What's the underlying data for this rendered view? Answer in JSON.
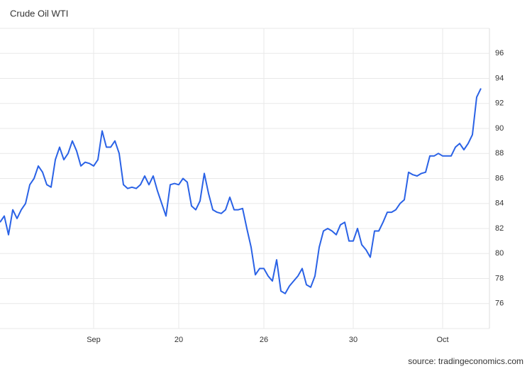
{
  "chart_data": {
    "type": "line",
    "title": "Crude Oil WTI",
    "source": "source: tradingeconomics.com",
    "categories": [
      null,
      null,
      null,
      null,
      null,
      null,
      null,
      null,
      null,
      null,
      null,
      null,
      null,
      null,
      null,
      null,
      null,
      null,
      null,
      null,
      null,
      null,
      "Sep",
      null,
      null,
      null,
      null,
      null,
      null,
      null,
      null,
      null,
      null,
      null,
      null,
      null,
      null,
      null,
      null,
      null,
      null,
      null,
      "20",
      null,
      null,
      null,
      null,
      null,
      null,
      null,
      null,
      null,
      null,
      null,
      null,
      null,
      null,
      null,
      null,
      null,
      null,
      null,
      "26",
      null,
      null,
      null,
      null,
      null,
      null,
      null,
      null,
      null,
      null,
      null,
      null,
      null,
      null,
      null,
      null,
      null,
      null,
      null,
      null,
      "30",
      null,
      null,
      null,
      null,
      null,
      null,
      null,
      null,
      null,
      null,
      null,
      null,
      null,
      null,
      null,
      null,
      null,
      null,
      null,
      null,
      "Oct",
      null,
      null,
      null,
      null,
      null,
      null,
      null,
      null,
      null
    ],
    "values": [
      82.5,
      83,
      81.5,
      83.5,
      82.8,
      83.5,
      84,
      85.5,
      86,
      87,
      86.5,
      85.5,
      85.3,
      87.5,
      88.5,
      87.5,
      88,
      89,
      88.2,
      87,
      87.3,
      87.2,
      87,
      87.5,
      89.8,
      88.5,
      88.5,
      89,
      88,
      85.5,
      85.2,
      85.3,
      85.2,
      85.5,
      86.2,
      85.5,
      86.2,
      85,
      84,
      83,
      85.5,
      85.6,
      85.5,
      86,
      85.7,
      83.8,
      83.5,
      84.2,
      86.4,
      84.8,
      83.5,
      83.3,
      83.2,
      83.5,
      84.5,
      83.5,
      83.5,
      83.6,
      82,
      80.5,
      78.3,
      78.8,
      78.8,
      78.2,
      77.8,
      79.5,
      77,
      76.8,
      77.4,
      77.8,
      78.2,
      78.8,
      77.5,
      77.3,
      78.2,
      80.5,
      81.8,
      82,
      81.8,
      81.5,
      82.3,
      82.5,
      81,
      81,
      82,
      80.7,
      80.3,
      79.7,
      81.8,
      81.8,
      82.5,
      83.3,
      83.3,
      83.5,
      84,
      84.3,
      86.5,
      86.3,
      86.2,
      86.4,
      86.5,
      87.8,
      87.8,
      88,
      87.8,
      87.8,
      87.8,
      88.5,
      88.8,
      88.3,
      88.8,
      89.5,
      92.5,
      93.2
    ],
    "color": "#2a62e6",
    "ylim": [
      74,
      98
    ],
    "yticks": [
      76,
      78,
      80,
      82,
      84,
      86,
      88,
      90,
      92,
      94,
      96
    ],
    "grid": true
  }
}
